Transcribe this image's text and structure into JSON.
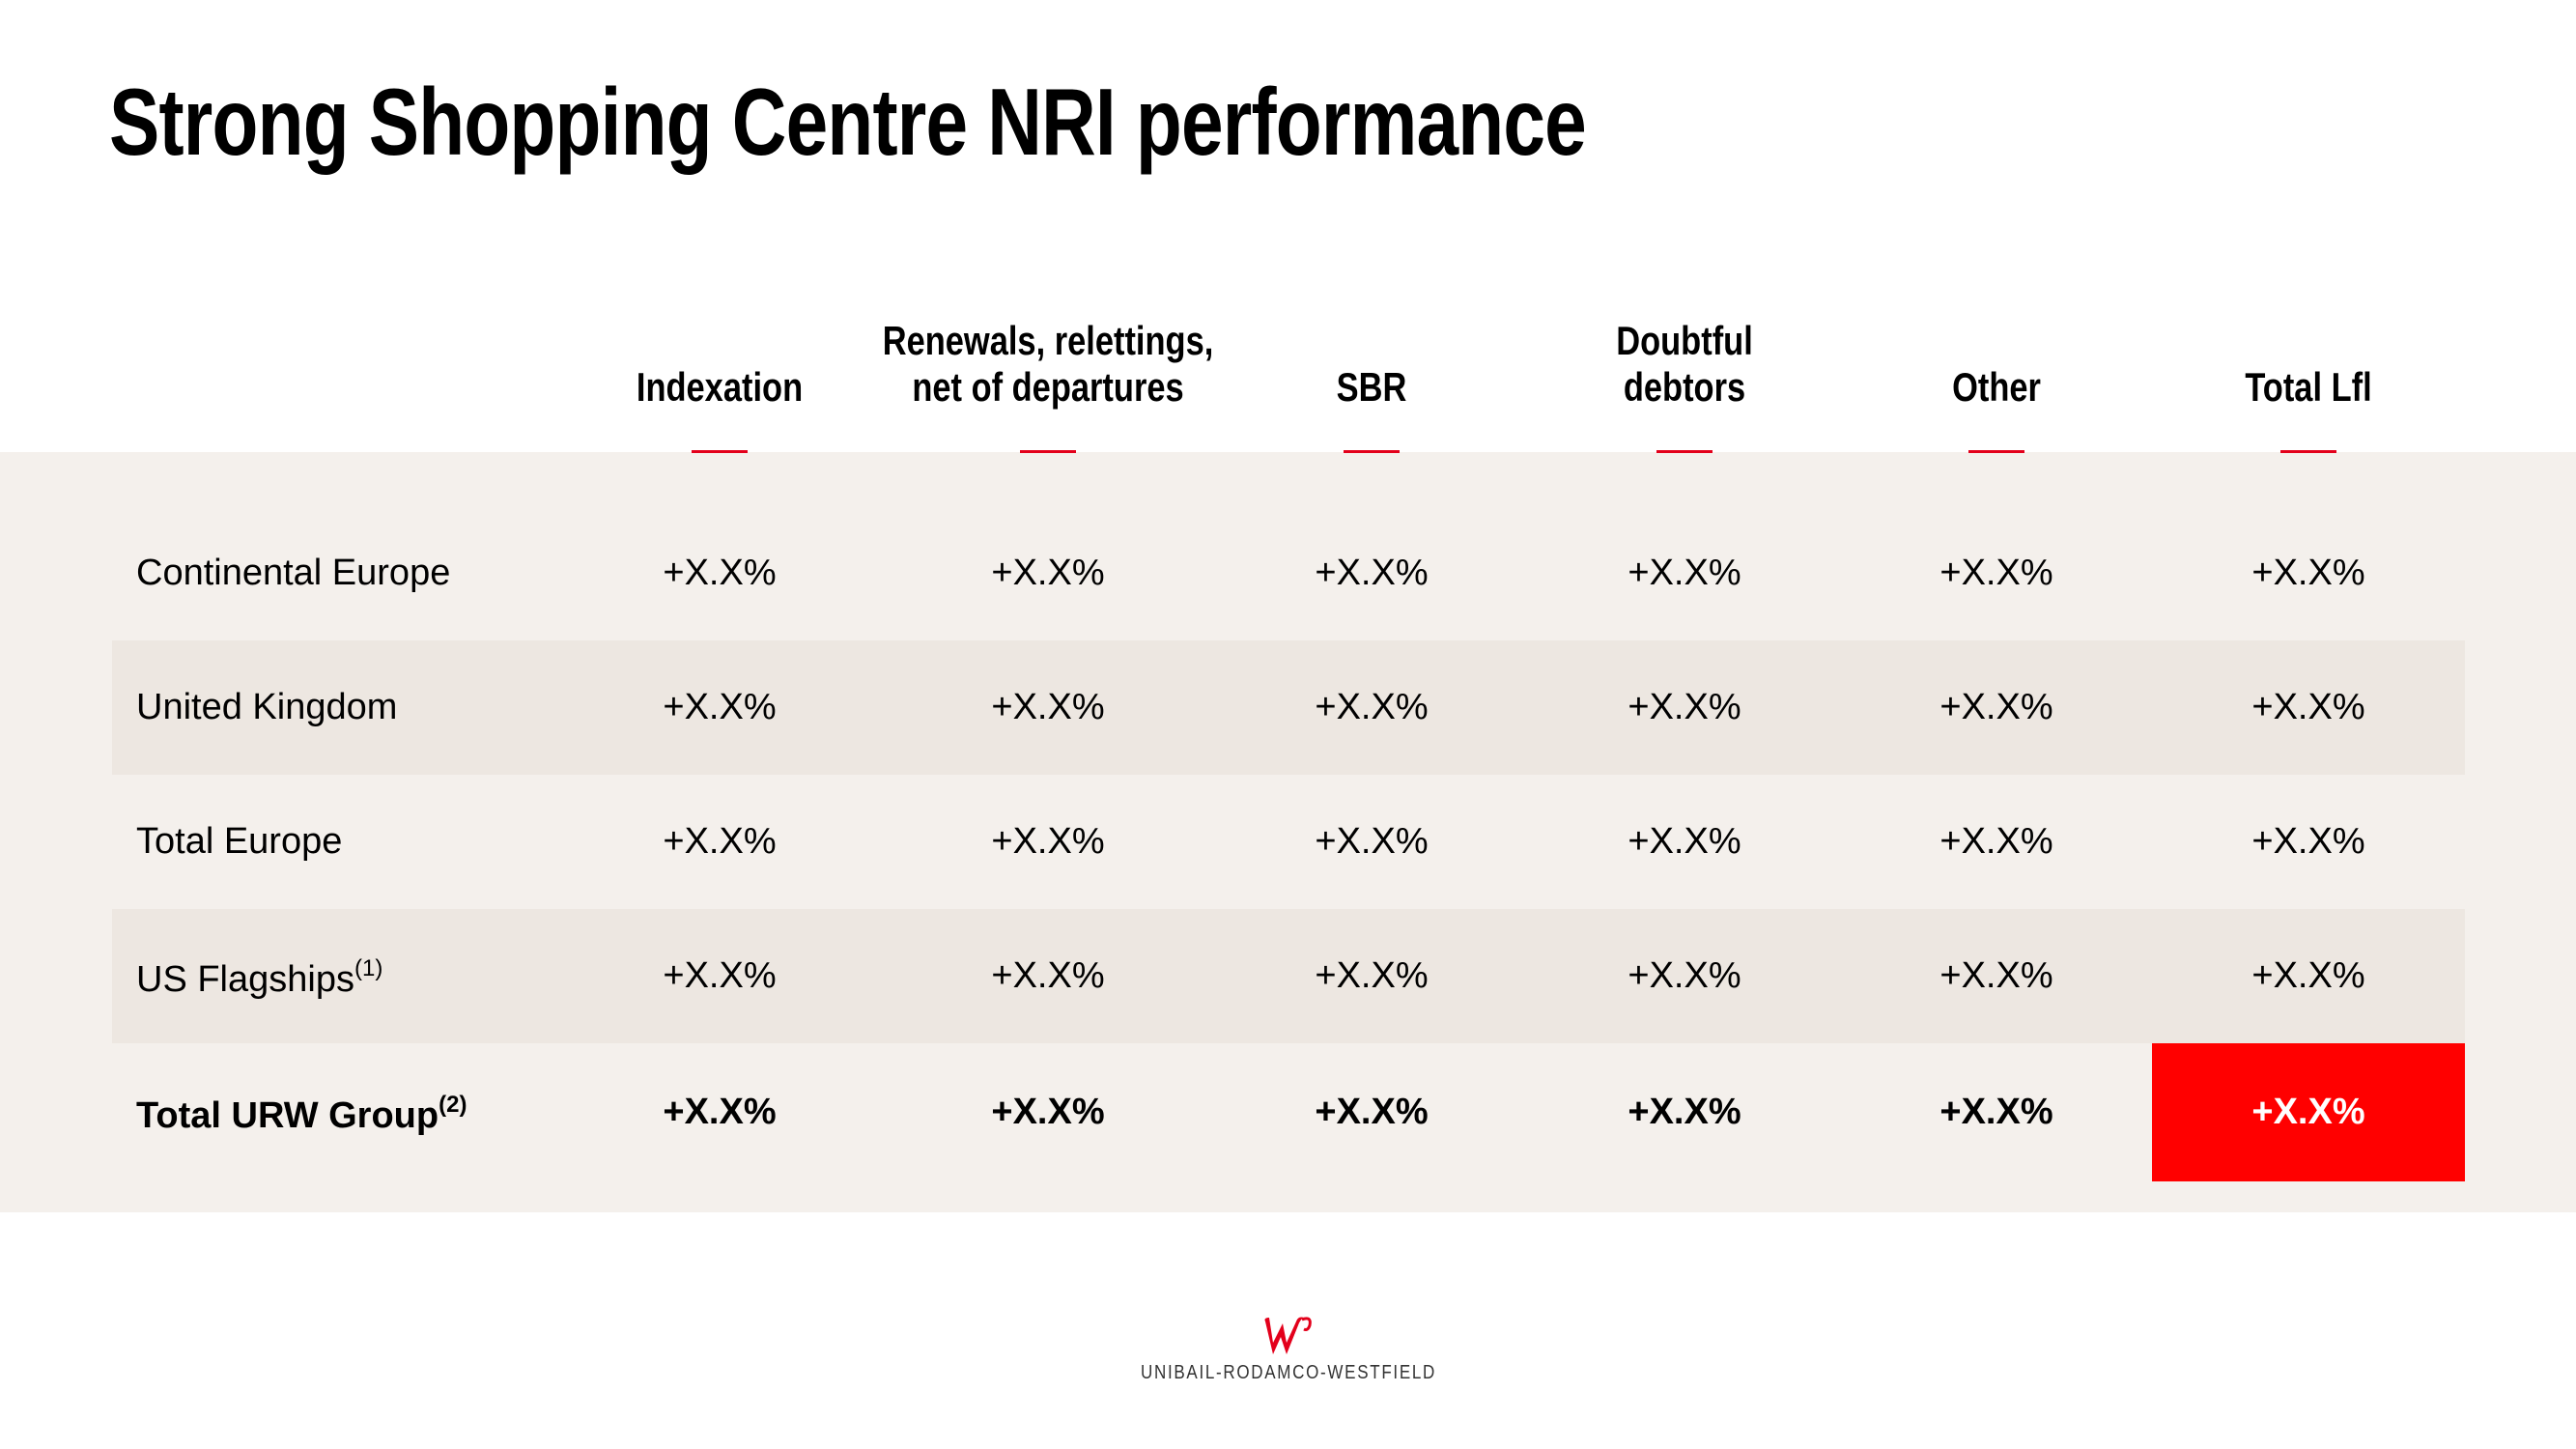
{
  "title": "Strong Shopping Centre NRI performance",
  "table": {
    "headers": [
      [
        "Indexation"
      ],
      [
        "Renewals, relettings,",
        "net of departures"
      ],
      [
        "SBR"
      ],
      [
        "Doubtful",
        "debtors"
      ],
      [
        "Other"
      ],
      [
        "Total Lfl"
      ]
    ],
    "rows": [
      {
        "label": "Continental Europe",
        "cells": [
          "+X.X%",
          "+X.X%",
          "+X.X%",
          "+X.X%",
          "+X.X%",
          "+X.X%"
        ]
      },
      {
        "label": "United Kingdom",
        "cells": [
          "+X.X%",
          "+X.X%",
          "+X.X%",
          "+X.X%",
          "+X.X%",
          "+X.X%"
        ]
      },
      {
        "label": "Total Europe",
        "cells": [
          "+X.X%",
          "+X.X%",
          "+X.X%",
          "+X.X%",
          "+X.X%",
          "+X.X%"
        ]
      },
      {
        "label": "US Flagships",
        "note": "(1)",
        "cells": [
          "+X.X%",
          "+X.X%",
          "+X.X%",
          "+X.X%",
          "+X.X%",
          "+X.X%"
        ]
      },
      {
        "label": "Total URW Group",
        "note": "(2)",
        "cells": [
          "+X.X%",
          "+X.X%",
          "+X.X%",
          "+X.X%",
          "+X.X%",
          "+X.X%"
        ]
      }
    ]
  },
  "footer": {
    "brand": "UNIBAIL-RODAMCO-WESTFIELD"
  }
}
